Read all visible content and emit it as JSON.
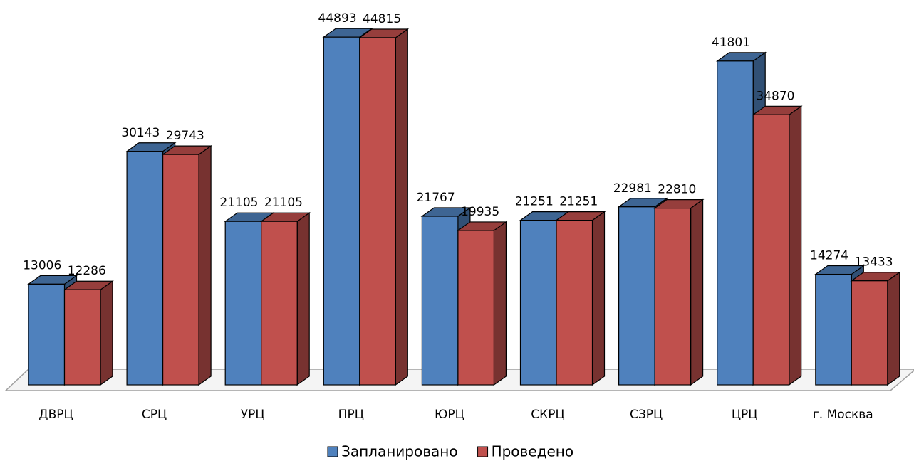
{
  "chart_data": {
    "type": "bar3d",
    "categories": [
      "ДВРЦ",
      "СРЦ",
      "УРЦ",
      "ПРЦ",
      "ЮРЦ",
      "СКРЦ",
      "СЗРЦ",
      "ЦРЦ",
      "г. Москва"
    ],
    "series": [
      {
        "name": "Запланировано",
        "color": "#4f81bd",
        "values": [
          13006,
          30143,
          21105,
          44893,
          21767,
          21251,
          22981,
          41801,
          14274
        ]
      },
      {
        "name": "Проведено",
        "color": "#c0504d",
        "values": [
          12286,
          29743,
          21105,
          44815,
          19935,
          21251,
          22810,
          34870,
          13433
        ]
      }
    ],
    "ylim": [
      0,
      45000
    ],
    "legend": "bottom"
  }
}
